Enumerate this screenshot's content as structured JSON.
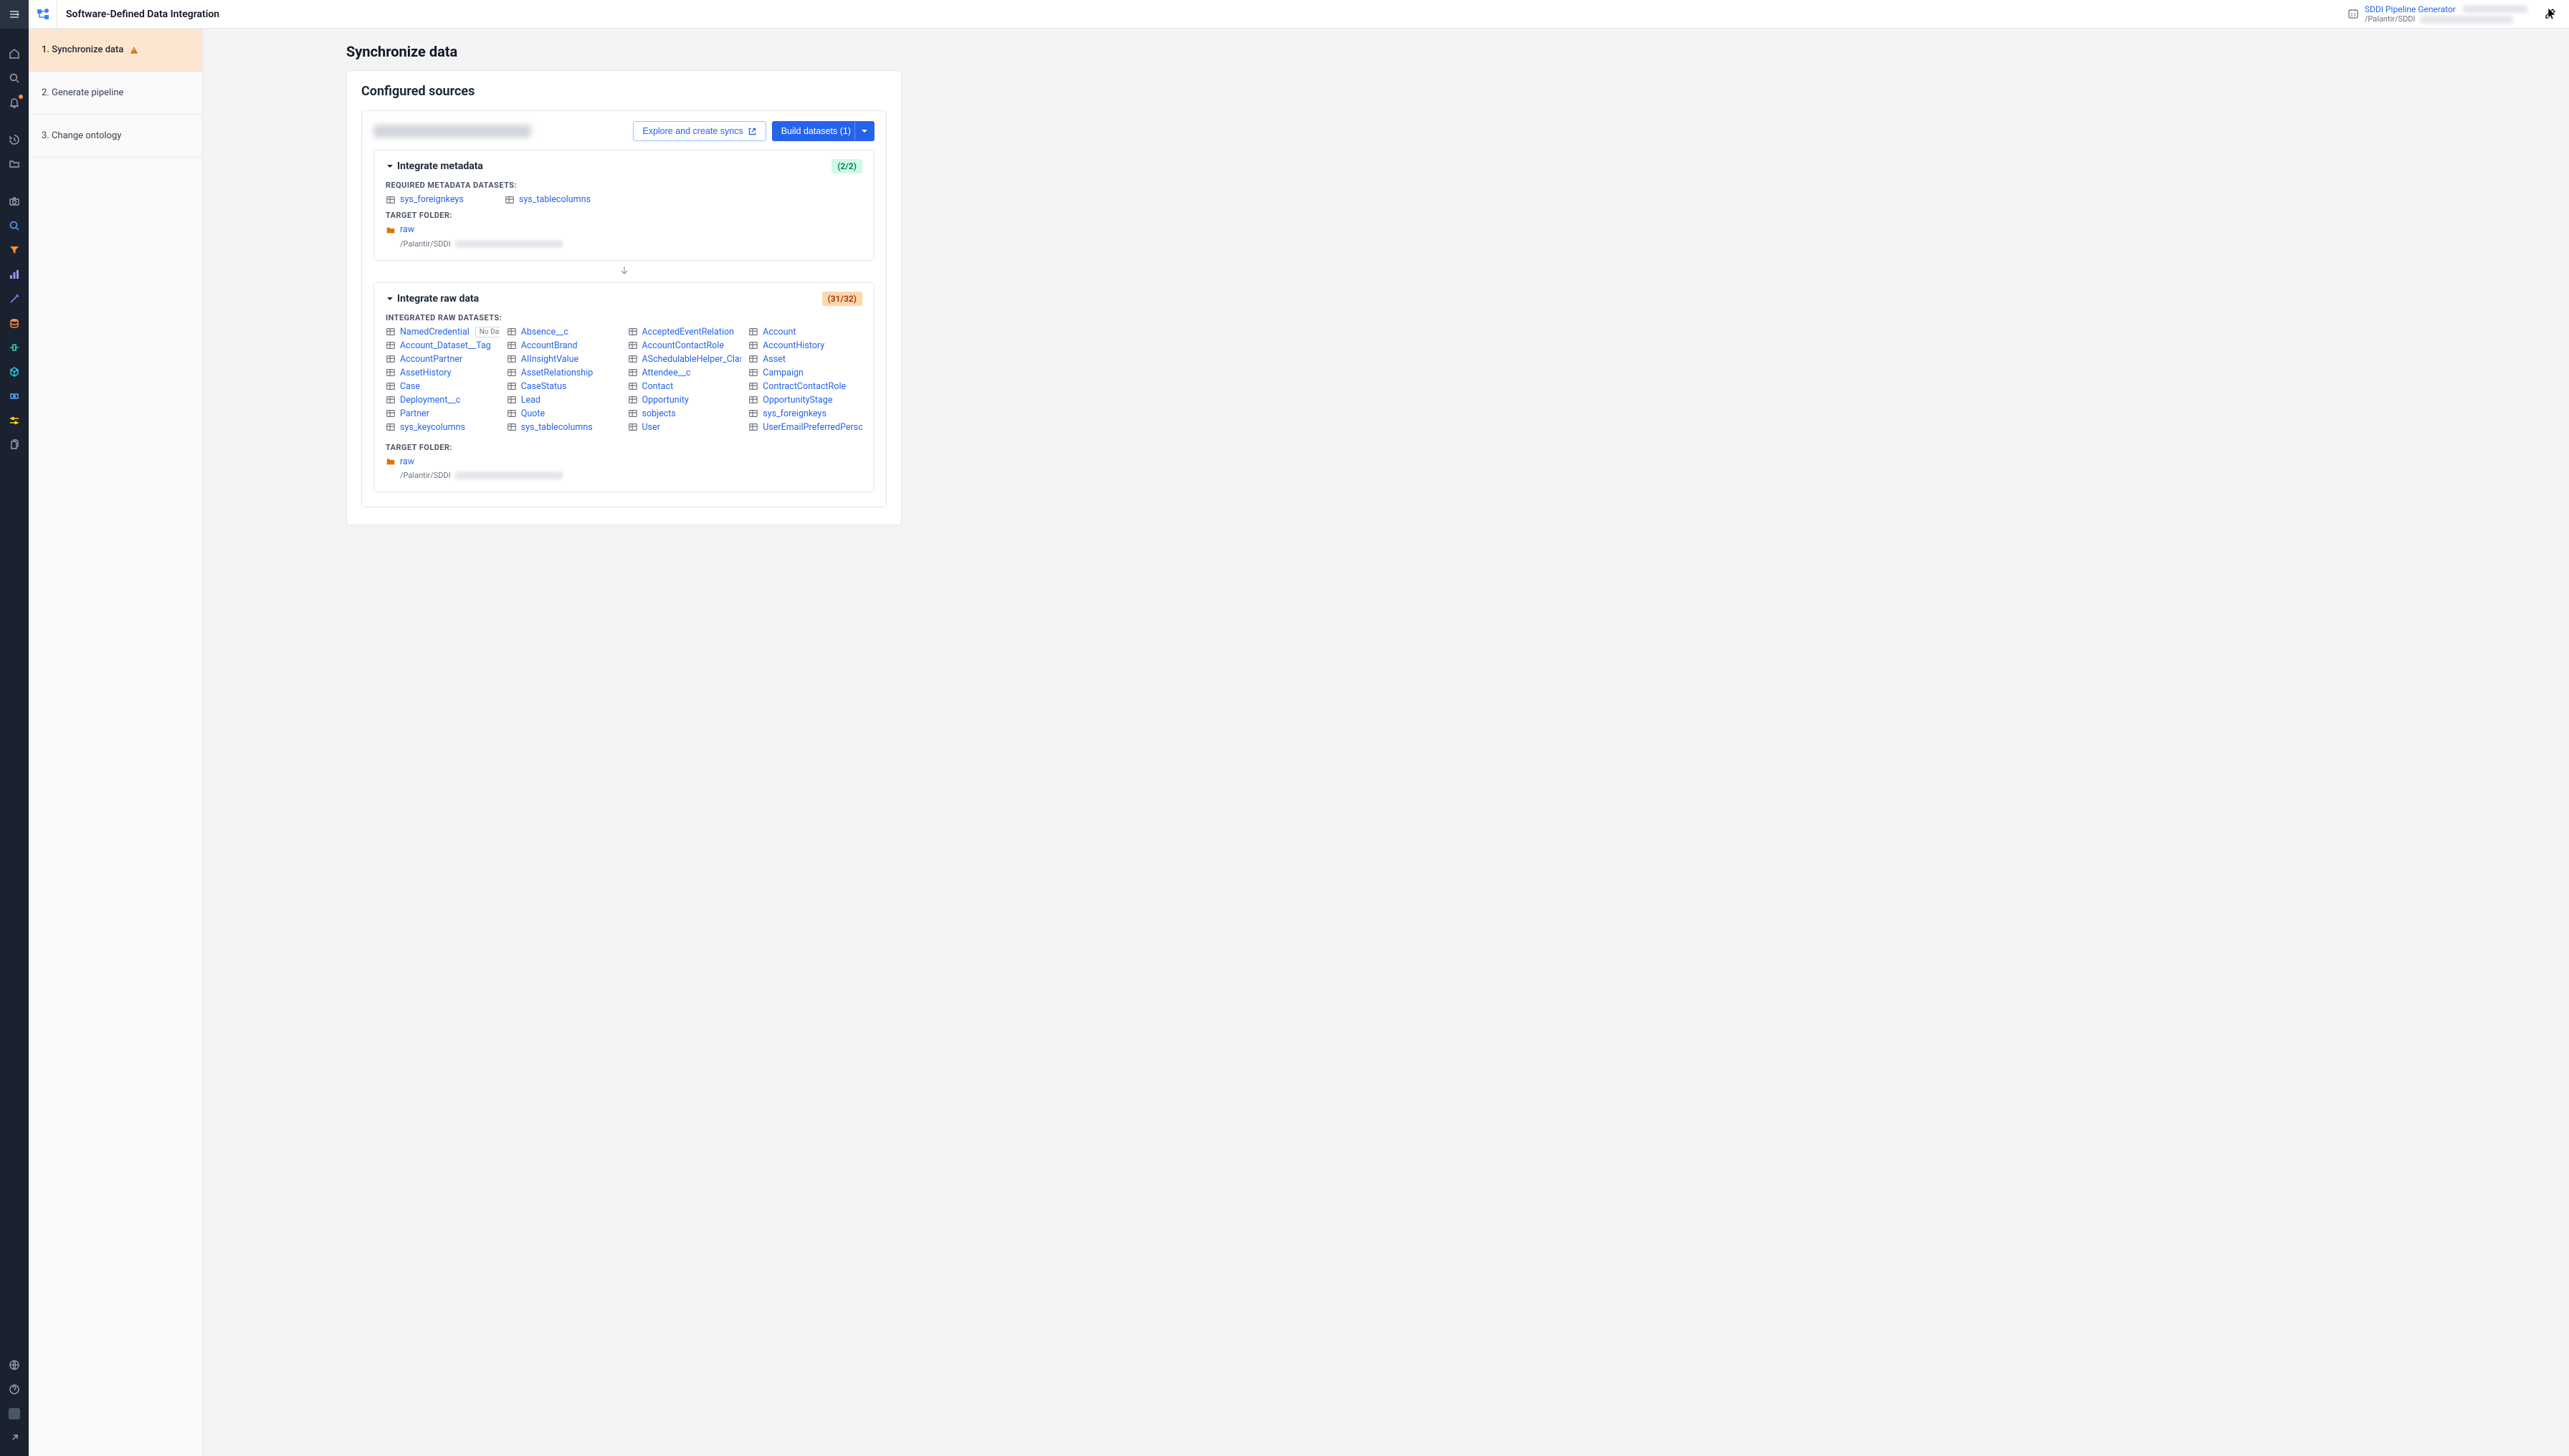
{
  "app": {
    "title": "Software-Defined Data Integration",
    "generator_label": "SDDI Pipeline Generator",
    "generator_path": "/Palantir/SDDI"
  },
  "stepper": {
    "steps": [
      {
        "label": "1. Synchronize data",
        "active": true,
        "warning": true
      },
      {
        "label": "2. Generate pipeline",
        "active": false,
        "warning": false
      },
      {
        "label": "3. Change ontology",
        "active": false,
        "warning": false
      }
    ]
  },
  "page": {
    "title": "Synchronize data",
    "card_title": "Configured sources",
    "explore_btn": "Explore and create syncs",
    "build_btn": "Build datasets (1)"
  },
  "metadata_section": {
    "title": "Integrate metadata",
    "badge": "(2/2)",
    "required_label": "REQUIRED METADATA DATASETS:",
    "datasets": [
      "sys_foreignkeys",
      "sys_tablecolumns"
    ],
    "target_label": "TARGET FOLDER:",
    "folder": "raw",
    "folder_path": "/Palantir/SDDI"
  },
  "raw_section": {
    "title": "Integrate raw data",
    "badge": "(31/32)",
    "integrated_label": "INTEGRATED RAW DATASETS:",
    "datasets": [
      {
        "name": "NamedCredential",
        "nodata": true
      },
      {
        "name": "Absence__c"
      },
      {
        "name": "AcceptedEventRelation"
      },
      {
        "name": "Account"
      },
      {
        "name": "Account_Dataset__Tag"
      },
      {
        "name": "AccountBrand"
      },
      {
        "name": "AccountContactRole"
      },
      {
        "name": "AccountHistory"
      },
      {
        "name": "AccountPartner"
      },
      {
        "name": "AIInsightValue"
      },
      {
        "name": "ASchedulableHelper_Class__Ta"
      },
      {
        "name": "Asset"
      },
      {
        "name": "AssetHistory"
      },
      {
        "name": "AssetRelationship"
      },
      {
        "name": "Attendee__c"
      },
      {
        "name": "Campaign"
      },
      {
        "name": "Case"
      },
      {
        "name": "CaseStatus"
      },
      {
        "name": "Contact"
      },
      {
        "name": "ContractContactRole"
      },
      {
        "name": "Deployment__c"
      },
      {
        "name": "Lead"
      },
      {
        "name": "Opportunity"
      },
      {
        "name": "OpportunityStage"
      },
      {
        "name": "Partner"
      },
      {
        "name": "Quote"
      },
      {
        "name": "sobjects"
      },
      {
        "name": "sys_foreignkeys"
      },
      {
        "name": "sys_keycolumns"
      },
      {
        "name": "sys_tablecolumns"
      },
      {
        "name": "User"
      },
      {
        "name": "UserEmailPreferredPerson"
      }
    ],
    "nodata_label": "No Data",
    "target_label": "TARGET FOLDER:",
    "folder": "raw",
    "folder_path": "/Palantir/SDDI"
  },
  "colors": {
    "link": "#2563eb",
    "rail_bg": "#1a2230",
    "active_step_bg": "#fde6cf",
    "badge_green_bg": "#d1fae5",
    "badge_green_fg": "#047857",
    "badge_orange_bg": "#fed7aa",
    "badge_orange_fg": "#9a3412"
  }
}
